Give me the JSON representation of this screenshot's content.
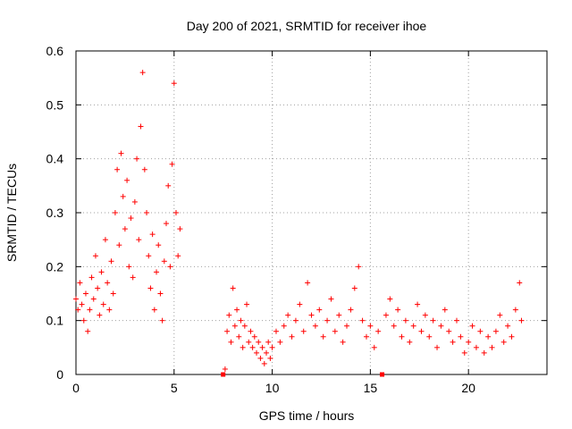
{
  "chart_data": {
    "type": "scatter",
    "title": "Day 200 of 2021, SRMTID for receiver ihoe",
    "xlabel": "GPS time / hours",
    "ylabel": "SRMTID / TECUs",
    "xlim": [
      0,
      24
    ],
    "ylim": [
      0,
      0.6
    ],
    "xticks": [
      0,
      5,
      10,
      15,
      20
    ],
    "xtick_labels": [
      "0",
      "5",
      "10",
      "15",
      "20"
    ],
    "yticks": [
      0,
      0.1,
      0.2,
      0.3,
      0.4,
      0.5,
      0.6
    ],
    "ytick_labels": [
      "0",
      "0.1",
      "0.2",
      "0.3",
      "0.4",
      "0.5",
      "0.6"
    ],
    "grid": true,
    "marker": "+",
    "color": "#ff0000",
    "series": [
      {
        "name": "SRMTID",
        "points": [
          [
            0.0,
            0.14
          ],
          [
            0.1,
            0.12
          ],
          [
            0.2,
            0.17
          ],
          [
            0.3,
            0.13
          ],
          [
            0.4,
            0.1
          ],
          [
            0.5,
            0.15
          ],
          [
            0.6,
            0.08
          ],
          [
            0.7,
            0.12
          ],
          [
            0.8,
            0.18
          ],
          [
            0.9,
            0.14
          ],
          [
            1.0,
            0.22
          ],
          [
            1.1,
            0.16
          ],
          [
            1.2,
            0.11
          ],
          [
            1.3,
            0.19
          ],
          [
            1.4,
            0.13
          ],
          [
            1.5,
            0.25
          ],
          [
            1.6,
            0.17
          ],
          [
            1.7,
            0.12
          ],
          [
            1.8,
            0.21
          ],
          [
            1.9,
            0.15
          ],
          [
            2.0,
            0.3
          ],
          [
            2.1,
            0.38
          ],
          [
            2.2,
            0.24
          ],
          [
            2.3,
            0.41
          ],
          [
            2.4,
            0.33
          ],
          [
            2.5,
            0.27
          ],
          [
            2.6,
            0.36
          ],
          [
            2.7,
            0.2
          ],
          [
            2.8,
            0.29
          ],
          [
            2.9,
            0.18
          ],
          [
            3.0,
            0.32
          ],
          [
            3.1,
            0.4
          ],
          [
            3.2,
            0.25
          ],
          [
            3.3,
            0.46
          ],
          [
            3.4,
            0.56
          ],
          [
            3.5,
            0.38
          ],
          [
            3.6,
            0.3
          ],
          [
            3.7,
            0.22
          ],
          [
            3.8,
            0.16
          ],
          [
            3.9,
            0.26
          ],
          [
            4.0,
            0.12
          ],
          [
            4.1,
            0.19
          ],
          [
            4.2,
            0.24
          ],
          [
            4.3,
            0.15
          ],
          [
            4.4,
            0.1
          ],
          [
            4.5,
            0.21
          ],
          [
            4.6,
            0.28
          ],
          [
            4.7,
            0.35
          ],
          [
            4.8,
            0.2
          ],
          [
            4.9,
            0.39
          ],
          [
            5.0,
            0.54
          ],
          [
            5.1,
            0.3
          ],
          [
            5.2,
            0.22
          ],
          [
            5.3,
            0.27
          ],
          [
            7.5,
            0.0
          ],
          [
            7.6,
            0.01
          ],
          [
            7.7,
            0.08
          ],
          [
            7.8,
            0.11
          ],
          [
            7.9,
            0.06
          ],
          [
            8.0,
            0.16
          ],
          [
            8.1,
            0.09
          ],
          [
            8.2,
            0.12
          ],
          [
            8.3,
            0.07
          ],
          [
            8.4,
            0.1
          ],
          [
            8.5,
            0.05
          ],
          [
            8.6,
            0.09
          ],
          [
            8.7,
            0.13
          ],
          [
            8.8,
            0.06
          ],
          [
            8.9,
            0.08
          ],
          [
            9.0,
            0.05
          ],
          [
            9.1,
            0.07
          ],
          [
            9.2,
            0.04
          ],
          [
            9.3,
            0.06
          ],
          [
            9.4,
            0.03
          ],
          [
            9.5,
            0.05
          ],
          [
            9.6,
            0.02
          ],
          [
            9.7,
            0.04
          ],
          [
            9.8,
            0.06
          ],
          [
            9.9,
            0.03
          ],
          [
            10.0,
            0.05
          ],
          [
            10.2,
            0.08
          ],
          [
            10.4,
            0.06
          ],
          [
            10.6,
            0.09
          ],
          [
            10.8,
            0.11
          ],
          [
            11.0,
            0.07
          ],
          [
            11.2,
            0.1
          ],
          [
            11.4,
            0.13
          ],
          [
            11.6,
            0.08
          ],
          [
            11.8,
            0.17
          ],
          [
            12.0,
            0.11
          ],
          [
            12.2,
            0.09
          ],
          [
            12.4,
            0.12
          ],
          [
            12.6,
            0.07
          ],
          [
            12.8,
            0.1
          ],
          [
            13.0,
            0.14
          ],
          [
            13.2,
            0.08
          ],
          [
            13.4,
            0.11
          ],
          [
            13.6,
            0.06
          ],
          [
            13.8,
            0.09
          ],
          [
            14.0,
            0.12
          ],
          [
            14.2,
            0.16
          ],
          [
            14.4,
            0.2
          ],
          [
            14.6,
            0.1
          ],
          [
            14.8,
            0.07
          ],
          [
            15.0,
            0.09
          ],
          [
            15.2,
            0.05
          ],
          [
            15.4,
            0.08
          ],
          [
            15.6,
            0.0
          ],
          [
            15.8,
            0.11
          ],
          [
            16.0,
            0.14
          ],
          [
            16.2,
            0.09
          ],
          [
            16.4,
            0.12
          ],
          [
            16.6,
            0.07
          ],
          [
            16.8,
            0.1
          ],
          [
            17.0,
            0.06
          ],
          [
            17.2,
            0.09
          ],
          [
            17.4,
            0.13
          ],
          [
            17.6,
            0.08
          ],
          [
            17.8,
            0.11
          ],
          [
            18.0,
            0.07
          ],
          [
            18.2,
            0.1
          ],
          [
            18.4,
            0.05
          ],
          [
            18.6,
            0.09
          ],
          [
            18.8,
            0.12
          ],
          [
            19.0,
            0.08
          ],
          [
            19.2,
            0.06
          ],
          [
            19.4,
            0.1
          ],
          [
            19.6,
            0.07
          ],
          [
            19.8,
            0.04
          ],
          [
            20.0,
            0.06
          ],
          [
            20.2,
            0.09
          ],
          [
            20.4,
            0.05
          ],
          [
            20.6,
            0.08
          ],
          [
            20.8,
            0.04
          ],
          [
            21.0,
            0.07
          ],
          [
            21.2,
            0.05
          ],
          [
            21.4,
            0.08
          ],
          [
            21.6,
            0.11
          ],
          [
            21.8,
            0.06
          ],
          [
            22.0,
            0.09
          ],
          [
            22.2,
            0.07
          ],
          [
            22.4,
            0.12
          ],
          [
            22.6,
            0.17
          ],
          [
            22.7,
            0.1
          ]
        ]
      }
    ]
  }
}
